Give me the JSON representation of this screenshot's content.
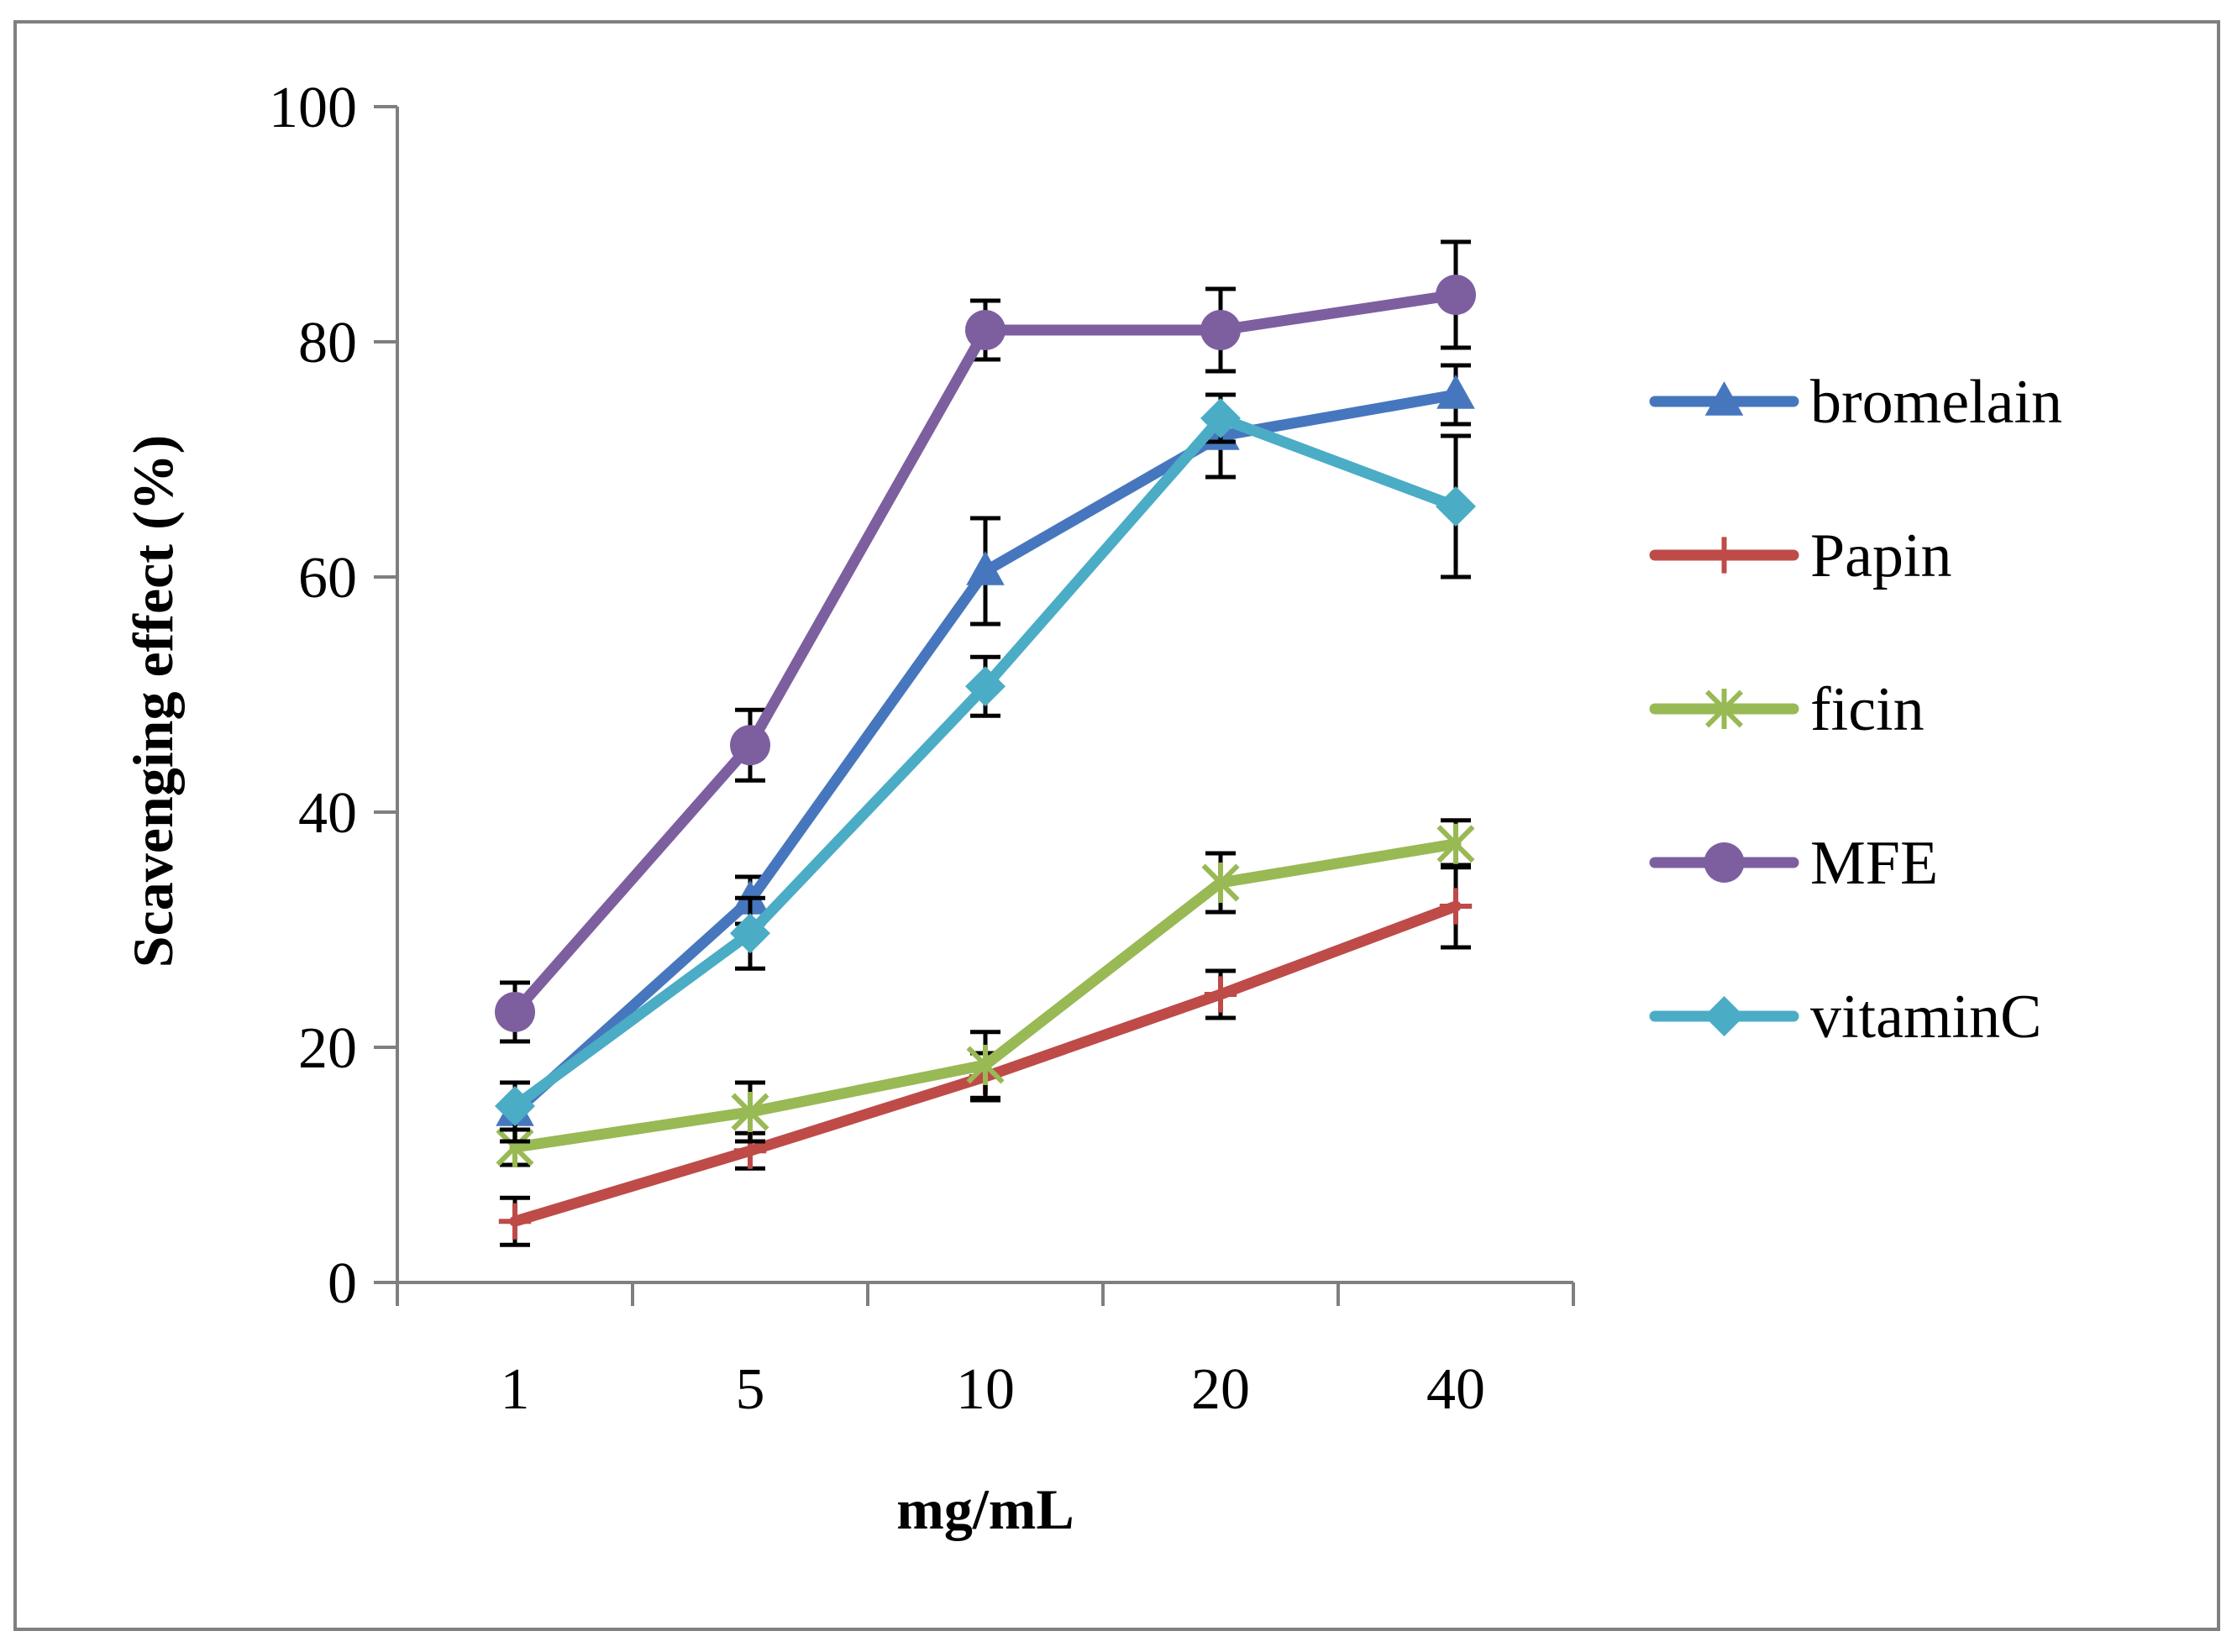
{
  "chart_data": {
    "type": "line",
    "title": "",
    "xlabel": "mg/mL",
    "ylabel": "Scavenging effect (%)",
    "categories": [
      "1",
      "5",
      "10",
      "20",
      "40"
    ],
    "ylim": [
      0,
      100
    ],
    "yticks": [
      0,
      20,
      40,
      60,
      80,
      100
    ],
    "grid": false,
    "legend_position": "right",
    "series": [
      {
        "name": "bromelain",
        "color": "#4677be",
        "marker": "triangle",
        "values": [
          14.5,
          32.5,
          60.5,
          72.0,
          75.5
        ],
        "errors": [
          2.5,
          2.0,
          4.5,
          3.5,
          2.5
        ]
      },
      {
        "name": "Papin",
        "color": "#be4b48",
        "marker": "plus",
        "values": [
          5.2,
          11.2,
          17.5,
          24.5,
          32.0
        ],
        "errors": [
          2.0,
          1.5,
          2.0,
          2.0,
          3.5
        ]
      },
      {
        "name": "ficin",
        "color": "#98b954",
        "marker": "star",
        "values": [
          11.5,
          14.5,
          18.5,
          34.0,
          37.3
        ],
        "errors": [
          1.5,
          2.5,
          2.8,
          2.5,
          2.0
        ]
      },
      {
        "name": "MFE",
        "color": "#7d5fa0",
        "marker": "circle",
        "values": [
          23.0,
          45.7,
          81.0,
          81.0,
          84.0
        ],
        "errors": [
          2.5,
          3.0,
          2.5,
          3.5,
          4.5
        ]
      },
      {
        "name": "vitaminC",
        "color": "#4bacc6",
        "marker": "diamond",
        "values": [
          15.0,
          29.7,
          50.7,
          73.5,
          66.0
        ],
        "errors": [
          2.0,
          3.0,
          2.5,
          2.0,
          6.0
        ]
      }
    ]
  }
}
